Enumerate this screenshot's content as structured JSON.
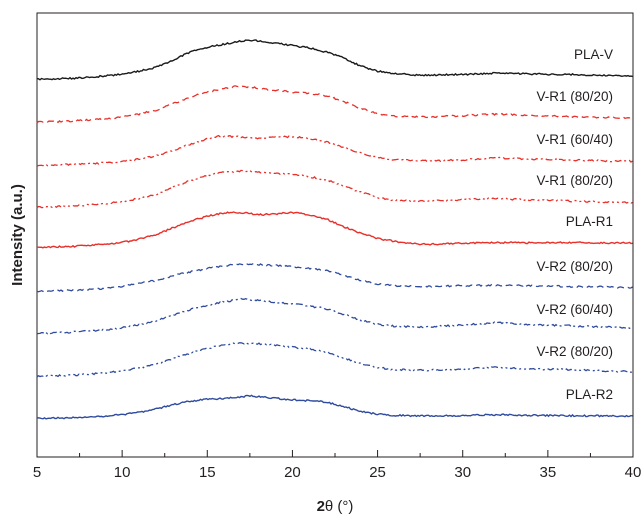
{
  "chart_data": {
    "type": "line",
    "title": "",
    "xlabel_prefix": "2",
    "xlabel_symbol": "θ (°)",
    "ylabel": "Intensity (a.u.)",
    "xlim": [
      5,
      40
    ],
    "xticks": [
      5,
      10,
      15,
      20,
      25,
      30,
      35,
      40
    ],
    "y_ticks_shown": false,
    "grid": false,
    "legend": "labels at right end of each curve",
    "colors": {
      "black": "#1a1a1a",
      "red": "#e8302a",
      "blue": "#2f4b9e",
      "axis": "#231f20"
    },
    "series": [
      {
        "name": "PLA-V",
        "color": "black",
        "dash": "solid",
        "points": [
          [
            5,
            0.02
          ],
          [
            7,
            0.04
          ],
          [
            9,
            0.1
          ],
          [
            10,
            0.15
          ],
          [
            11,
            0.22
          ],
          [
            12,
            0.32
          ],
          [
            13,
            0.5
          ],
          [
            14,
            0.7
          ],
          [
            15,
            0.82
          ],
          [
            16,
            0.9
          ],
          [
            17,
            0.97
          ],
          [
            17.5,
            1.0
          ],
          [
            18,
            0.98
          ],
          [
            19,
            0.92
          ],
          [
            20,
            0.86
          ],
          [
            21,
            0.8
          ],
          [
            22,
            0.7
          ],
          [
            23,
            0.55
          ],
          [
            24,
            0.35
          ],
          [
            25,
            0.22
          ],
          [
            26,
            0.16
          ],
          [
            27,
            0.13
          ],
          [
            28,
            0.12
          ],
          [
            30,
            0.14
          ],
          [
            32,
            0.17
          ],
          [
            34,
            0.15
          ],
          [
            36,
            0.14
          ],
          [
            38,
            0.12
          ],
          [
            40,
            0.1
          ]
        ]
      },
      {
        "name": "V-R1 (80/20)",
        "color": "red",
        "dash": "dash",
        "points": [
          [
            5,
            0.02
          ],
          [
            7,
            0.05
          ],
          [
            9,
            0.11
          ],
          [
            10,
            0.16
          ],
          [
            11,
            0.24
          ],
          [
            12,
            0.35
          ],
          [
            13,
            0.52
          ],
          [
            14,
            0.7
          ],
          [
            15,
            0.84
          ],
          [
            16,
            0.94
          ],
          [
            16.8,
            1.0
          ],
          [
            18,
            0.94
          ],
          [
            19,
            0.88
          ],
          [
            20,
            0.84
          ],
          [
            21,
            0.8
          ],
          [
            22,
            0.74
          ],
          [
            23,
            0.58
          ],
          [
            24,
            0.4
          ],
          [
            25,
            0.25
          ],
          [
            26,
            0.19
          ],
          [
            28,
            0.16
          ],
          [
            30,
            0.2
          ],
          [
            32,
            0.24
          ],
          [
            34,
            0.2
          ],
          [
            36,
            0.18
          ],
          [
            38,
            0.15
          ],
          [
            40,
            0.14
          ]
        ]
      },
      {
        "name": "V-R1 (60/40)",
        "color": "red",
        "dash": "dashdot",
        "points": [
          [
            5,
            0.02
          ],
          [
            7,
            0.05
          ],
          [
            9,
            0.1
          ],
          [
            10,
            0.15
          ],
          [
            11,
            0.22
          ],
          [
            12,
            0.33
          ],
          [
            13,
            0.5
          ],
          [
            14,
            0.7
          ],
          [
            15,
            0.88
          ],
          [
            15.6,
            0.96
          ],
          [
            16.5,
            0.95
          ],
          [
            18,
            0.9
          ],
          [
            19,
            0.93
          ],
          [
            20,
            0.95
          ],
          [
            21,
            0.88
          ],
          [
            22,
            0.78
          ],
          [
            23,
            0.6
          ],
          [
            24,
            0.42
          ],
          [
            25,
            0.28
          ],
          [
            26,
            0.2
          ],
          [
            28,
            0.16
          ],
          [
            30,
            0.2
          ],
          [
            32,
            0.26
          ],
          [
            34,
            0.22
          ],
          [
            36,
            0.2
          ],
          [
            38,
            0.17
          ],
          [
            40,
            0.15
          ]
        ]
      },
      {
        "name": "V-R1 (80/20)",
        "color": "red",
        "dash": "dashdotdot",
        "points": [
          [
            5,
            0.02
          ],
          [
            7,
            0.05
          ],
          [
            9,
            0.11
          ],
          [
            10,
            0.17
          ],
          [
            11,
            0.25
          ],
          [
            12,
            0.36
          ],
          [
            13,
            0.54
          ],
          [
            14,
            0.72
          ],
          [
            15,
            0.86
          ],
          [
            16,
            0.94
          ],
          [
            17,
            0.98
          ],
          [
            18,
            0.95
          ],
          [
            19,
            0.92
          ],
          [
            20,
            0.88
          ],
          [
            21,
            0.82
          ],
          [
            22,
            0.74
          ],
          [
            23,
            0.58
          ],
          [
            24,
            0.42
          ],
          [
            25,
            0.28
          ],
          [
            26,
            0.2
          ],
          [
            28,
            0.18
          ],
          [
            30,
            0.22
          ],
          [
            32,
            0.25
          ],
          [
            34,
            0.21
          ],
          [
            36,
            0.19
          ],
          [
            38,
            0.16
          ],
          [
            40,
            0.14
          ]
        ]
      },
      {
        "name": "PLA-R1",
        "color": "red",
        "dash": "solid",
        "points": [
          [
            5,
            0.02
          ],
          [
            7,
            0.04
          ],
          [
            9,
            0.1
          ],
          [
            10,
            0.15
          ],
          [
            11,
            0.24
          ],
          [
            12,
            0.36
          ],
          [
            13,
            0.55
          ],
          [
            14,
            0.72
          ],
          [
            15,
            0.86
          ],
          [
            16,
            0.95
          ],
          [
            17,
            0.96
          ],
          [
            18,
            0.9
          ],
          [
            19,
            0.92
          ],
          [
            20,
            0.96
          ],
          [
            21,
            0.9
          ],
          [
            22,
            0.78
          ],
          [
            23,
            0.58
          ],
          [
            24,
            0.4
          ],
          [
            25,
            0.26
          ],
          [
            26,
            0.18
          ],
          [
            27,
            0.12
          ],
          [
            28,
            0.1
          ],
          [
            30,
            0.13
          ],
          [
            32,
            0.15
          ],
          [
            34,
            0.14
          ],
          [
            36,
            0.15
          ],
          [
            38,
            0.14
          ],
          [
            40,
            0.13
          ]
        ]
      },
      {
        "name": "V-R2 (80/20)",
        "color": "blue",
        "dash": "dash",
        "points": [
          [
            5,
            0.02
          ],
          [
            7,
            0.06
          ],
          [
            9,
            0.13
          ],
          [
            10,
            0.2
          ],
          [
            11,
            0.3
          ],
          [
            12,
            0.42
          ],
          [
            13,
            0.58
          ],
          [
            14,
            0.72
          ],
          [
            15,
            0.84
          ],
          [
            16,
            0.94
          ],
          [
            17,
            1.0
          ],
          [
            18,
            0.98
          ],
          [
            19,
            0.95
          ],
          [
            20,
            0.9
          ],
          [
            21,
            0.84
          ],
          [
            22,
            0.76
          ],
          [
            23,
            0.6
          ],
          [
            24,
            0.42
          ],
          [
            25,
            0.28
          ],
          [
            26,
            0.22
          ],
          [
            28,
            0.2
          ],
          [
            30,
            0.22
          ],
          [
            32,
            0.24
          ],
          [
            34,
            0.22
          ],
          [
            36,
            0.2
          ],
          [
            38,
            0.18
          ],
          [
            40,
            0.16
          ]
        ]
      },
      {
        "name": "V-R2 (60/40)",
        "color": "blue",
        "dash": "dashdot",
        "points": [
          [
            5,
            0.02
          ],
          [
            7,
            0.05
          ],
          [
            9,
            0.12
          ],
          [
            10,
            0.18
          ],
          [
            11,
            0.27
          ],
          [
            12,
            0.38
          ],
          [
            13,
            0.54
          ],
          [
            14,
            0.7
          ],
          [
            15,
            0.82
          ],
          [
            16,
            0.92
          ],
          [
            17,
            1.0
          ],
          [
            18,
            0.96
          ],
          [
            19,
            0.9
          ],
          [
            20,
            0.86
          ],
          [
            21,
            0.8
          ],
          [
            22,
            0.72
          ],
          [
            23,
            0.56
          ],
          [
            24,
            0.4
          ],
          [
            25,
            0.28
          ],
          [
            26,
            0.22
          ],
          [
            28,
            0.2
          ],
          [
            30,
            0.26
          ],
          [
            32,
            0.32
          ],
          [
            34,
            0.27
          ],
          [
            36,
            0.24
          ],
          [
            38,
            0.2
          ],
          [
            40,
            0.18
          ]
        ]
      },
      {
        "name": "V-R2 (80/20)",
        "color": "blue",
        "dash": "dashdotdot",
        "points": [
          [
            5,
            0.02
          ],
          [
            7,
            0.05
          ],
          [
            9,
            0.12
          ],
          [
            10,
            0.18
          ],
          [
            11,
            0.27
          ],
          [
            12,
            0.38
          ],
          [
            13,
            0.54
          ],
          [
            14,
            0.7
          ],
          [
            15,
            0.84
          ],
          [
            16,
            0.94
          ],
          [
            17,
            1.0
          ],
          [
            18,
            0.98
          ],
          [
            19,
            0.94
          ],
          [
            20,
            0.88
          ],
          [
            21,
            0.82
          ],
          [
            22,
            0.74
          ],
          [
            23,
            0.56
          ],
          [
            24,
            0.4
          ],
          [
            25,
            0.28
          ],
          [
            26,
            0.22
          ],
          [
            28,
            0.2
          ],
          [
            30,
            0.24
          ],
          [
            32,
            0.28
          ],
          [
            34,
            0.24
          ],
          [
            36,
            0.22
          ],
          [
            38,
            0.18
          ],
          [
            40,
            0.16
          ]
        ]
      },
      {
        "name": "PLA-R2",
        "color": "blue",
        "dash": "solid",
        "points": [
          [
            5,
            0.02
          ],
          [
            7,
            0.05
          ],
          [
            9,
            0.12
          ],
          [
            10,
            0.18
          ],
          [
            11,
            0.28
          ],
          [
            12,
            0.42
          ],
          [
            13,
            0.6
          ],
          [
            14,
            0.75
          ],
          [
            15,
            0.82
          ],
          [
            16,
            0.86
          ],
          [
            17,
            0.92
          ],
          [
            17.5,
            0.98
          ],
          [
            18,
            0.93
          ],
          [
            19,
            0.86
          ],
          [
            20,
            0.8
          ],
          [
            21,
            0.76
          ],
          [
            22,
            0.7
          ],
          [
            23,
            0.52
          ],
          [
            24,
            0.32
          ],
          [
            25,
            0.2
          ],
          [
            26,
            0.15
          ],
          [
            28,
            0.13
          ],
          [
            30,
            0.15
          ],
          [
            32,
            0.18
          ],
          [
            34,
            0.15
          ],
          [
            36,
            0.14
          ],
          [
            38,
            0.13
          ],
          [
            40,
            0.12
          ]
        ]
      }
    ]
  }
}
